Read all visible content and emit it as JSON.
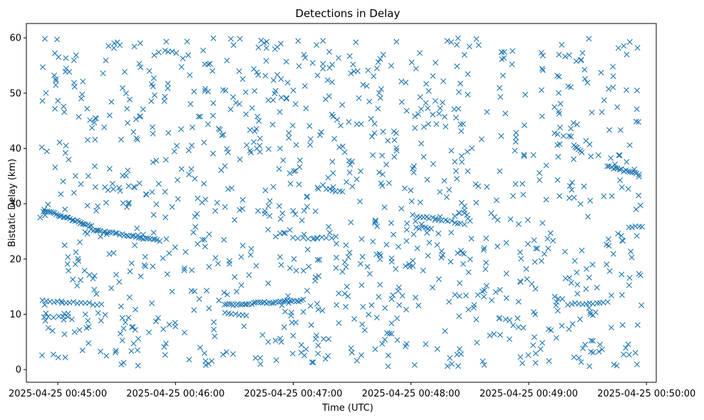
{
  "chart_data": {
    "type": "scatter",
    "title": "Detections in Delay",
    "xlabel": "Time (UTC)",
    "ylabel": "Bistatic Delay (km)",
    "marker": "x",
    "color": "#1f77b4",
    "grid": false,
    "x_ticks": [
      "2025-04-25 00:45:00",
      "2025-04-25 00:46:00",
      "2025-04-25 00:47:00",
      "2025-04-25 00:48:00",
      "2025-04-25 00:49:00",
      "2025-04-25 00:50:00"
    ],
    "y_ticks": [
      "0",
      "10",
      "20",
      "30",
      "40",
      "50",
      "60"
    ],
    "xlim": [
      "2025-04-25 00:44:44",
      "2025-04-25 00:50:05"
    ],
    "ylim": [
      -2.3,
      62.6
    ],
    "data_xrange": [
      "2025-04-25 00:44:51",
      "2025-04-25 00:49:58"
    ],
    "tracks": [
      {
        "t0": "2025-04-25 00:44:53",
        "t1": "2025-04-25 00:45:17",
        "y0": 28.8,
        "y1": 26.0,
        "n": 28
      },
      {
        "t0": "2025-04-25 00:45:17",
        "t1": "2025-04-25 00:45:52",
        "y0": 25.3,
        "y1": 23.3,
        "n": 30
      },
      {
        "t0": "2025-04-25 00:44:52",
        "t1": "2025-04-25 00:45:22",
        "y0": 12.4,
        "y1": 11.8,
        "n": 16
      },
      {
        "t0": "2025-04-25 00:44:53",
        "t1": "2025-04-25 00:45:05",
        "y0": 9.6,
        "y1": 9.5,
        "n": 6
      },
      {
        "t0": "2025-04-25 00:46:25",
        "t1": "2025-04-25 00:47:05",
        "y0": 11.7,
        "y1": 12.5,
        "n": 36
      },
      {
        "t0": "2025-04-25 00:46:25",
        "t1": "2025-04-25 00:46:36",
        "y0": 10.2,
        "y1": 9.8,
        "n": 7
      },
      {
        "t0": "2025-04-25 00:47:00",
        "t1": "2025-04-25 00:47:22",
        "y0": 23.7,
        "y1": 23.9,
        "n": 10
      },
      {
        "t0": "2025-04-25 00:47:17",
        "t1": "2025-04-25 00:47:25",
        "y0": 32.8,
        "y1": 32.1,
        "n": 6
      },
      {
        "t0": "2025-04-25 00:48:03",
        "t1": "2025-04-25 00:48:27",
        "y0": 27.8,
        "y1": 26.4,
        "n": 16
      },
      {
        "t0": "2025-04-25 00:48:03",
        "t1": "2025-04-25 00:48:10",
        "y0": 25.6,
        "y1": 25.6,
        "n": 6
      },
      {
        "t0": "2025-04-25 00:49:20",
        "t1": "2025-04-25 00:49:40",
        "y0": 11.8,
        "y1": 12.1,
        "n": 12
      },
      {
        "t0": "2025-04-25 00:49:40",
        "t1": "2025-04-25 00:49:56",
        "y0": 36.8,
        "y1": 35.3,
        "n": 16
      },
      {
        "t0": "2025-04-25 00:49:23",
        "t1": "2025-04-25 00:49:27",
        "y0": 40.6,
        "y1": 39.2,
        "n": 6
      },
      {
        "t0": "2025-04-25 00:49:51",
        "t1": "2025-04-25 00:49:58",
        "y0": 25.8,
        "y1": 25.8,
        "n": 5
      }
    ],
    "clutter": {
      "count": 1100,
      "y_range": [
        0.5,
        60.0
      ],
      "note": "uniformly scattered background detections"
    }
  }
}
